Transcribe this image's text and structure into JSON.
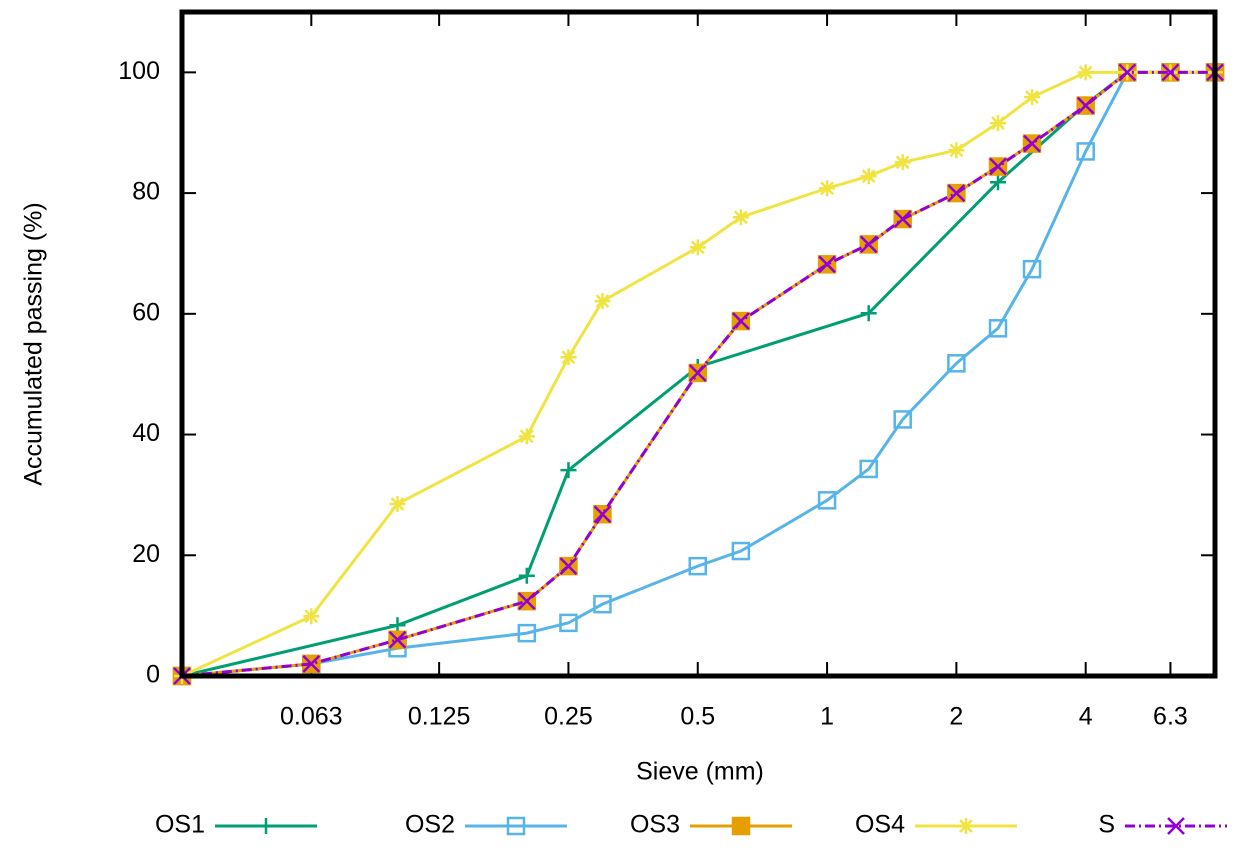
{
  "chart_data": {
    "type": "line",
    "x_label": "Sieve (mm)",
    "y_label": "Accumulated passing (%)",
    "log_x": true,
    "xlim": [
      0.0315,
      8
    ],
    "xticks": [
      0.063,
      0.125,
      0.25,
      0.5,
      1,
      2,
      4,
      6.3
    ],
    "ylim": [
      0,
      110
    ],
    "yticks": [
      0,
      20,
      40,
      60,
      80,
      100
    ],
    "legend": "bottom",
    "series": [
      {
        "name": "OS1",
        "color": "#009e73",
        "marker": "plus",
        "dash": "solid",
        "x": [
          0.0315,
          0.1,
          0.2,
          0.25,
          0.5,
          1.25,
          2.5,
          4,
          5,
          6.3,
          8
        ],
        "values": [
          0,
          8.4,
          16.6,
          34.1,
          51.2,
          60.1,
          81.8,
          94.7,
          100,
          100,
          100
        ]
      },
      {
        "name": "OS2",
        "color": "#56b4e9",
        "marker": "square",
        "dash": "solid",
        "x": [
          0.0315,
          0.063,
          0.1,
          0.2,
          0.25,
          0.3,
          0.5,
          0.63,
          1,
          1.25,
          1.5,
          2,
          2.5,
          3,
          4,
          5,
          6.3,
          8
        ],
        "values": [
          0,
          2,
          4.6,
          7.1,
          8.8,
          11.9,
          18.2,
          20.7,
          29.1,
          34.3,
          42.5,
          51.8,
          57.6,
          67.4,
          86.9,
          100,
          100,
          100
        ]
      },
      {
        "name": "OS3",
        "color": "#e69f00",
        "marker": "filled-square",
        "dash": "solid",
        "x": [
          0.0315,
          0.063,
          0.1,
          0.2,
          0.25,
          0.3,
          0.5,
          0.63,
          1,
          1.25,
          1.5,
          2,
          2.5,
          3,
          4,
          5,
          6.3,
          8
        ],
        "values": [
          0,
          2,
          6,
          12.4,
          18.2,
          26.8,
          50.2,
          58.8,
          68.2,
          71.5,
          75.7,
          80,
          84.4,
          88.2,
          94.5,
          100,
          100,
          100
        ]
      },
      {
        "name": "OS4",
        "color": "#f0e442",
        "marker": "star",
        "dash": "solid",
        "x": [
          0.0315,
          0.063,
          0.1,
          0.2,
          0.25,
          0.3,
          0.5,
          0.63,
          1,
          1.25,
          1.5,
          2,
          2.5,
          3,
          4,
          5,
          6.3,
          8
        ],
        "values": [
          0,
          9.9,
          28.5,
          39.7,
          52.8,
          62.1,
          71,
          76,
          80.8,
          82.8,
          85.1,
          87.1,
          91.6,
          95.9,
          100,
          100,
          100,
          100
        ]
      },
      {
        "name": "S",
        "color": "#9400d3",
        "marker": "cross",
        "dash": "dashdot",
        "x": [
          0.0315,
          0.063,
          0.1,
          0.2,
          0.25,
          0.3,
          0.5,
          0.63,
          1,
          1.25,
          1.5,
          2,
          2.5,
          3,
          4,
          5,
          6.3,
          8
        ],
        "values": [
          0,
          2,
          6,
          12.4,
          18.2,
          26.8,
          50.2,
          58.8,
          68.2,
          71.5,
          75.7,
          80,
          84.4,
          88.2,
          94.5,
          100,
          100,
          100
        ]
      }
    ]
  }
}
